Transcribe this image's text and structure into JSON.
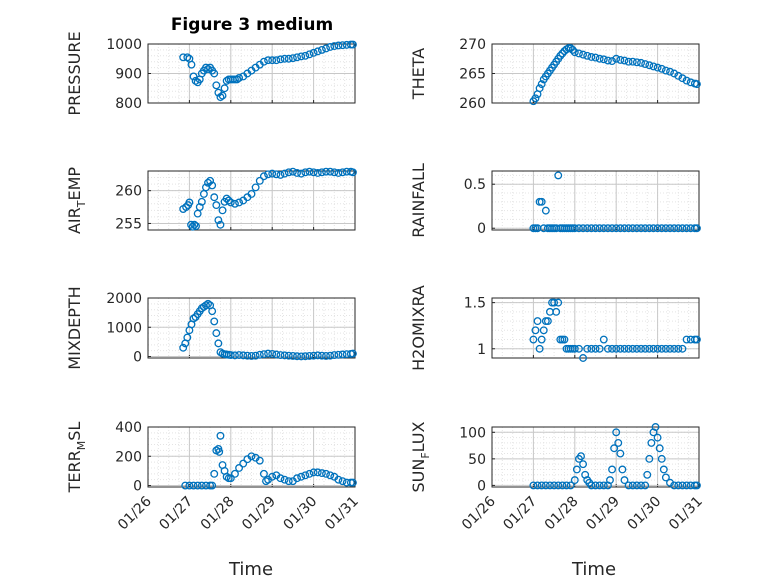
{
  "figure": {
    "title": "Figure 3 medium"
  },
  "colors": {
    "marker": "#0072BD",
    "axis": "#262626",
    "grid": "#c8c8c8",
    "grid_minor": "#e4e4e4"
  },
  "chart_data": [
    {
      "type": "scatter",
      "ylabel": "PRESSURE",
      "ylim": [
        800,
        1000
      ],
      "yticks": [
        {
          "v": 800,
          "label": "800"
        },
        {
          "v": 900,
          "label": "900"
        },
        {
          "v": 1000,
          "label": "1000"
        }
      ],
      "x": [
        0.85,
        0.95,
        1.0,
        1.05,
        1.1,
        1.15,
        1.2,
        1.25,
        1.3,
        1.35,
        1.4,
        1.45,
        1.5,
        1.55,
        1.6,
        1.65,
        1.7,
        1.75,
        1.8,
        1.85,
        1.9,
        1.95,
        2.0,
        2.05,
        2.1,
        2.15,
        2.2,
        2.3,
        2.4,
        2.5,
        2.6,
        2.7,
        2.8,
        2.9,
        3.0,
        3.1,
        3.2,
        3.3,
        3.4,
        3.5,
        3.6,
        3.7,
        3.8,
        3.9,
        4.0,
        4.1,
        4.2,
        4.3,
        4.4,
        4.5,
        4.6,
        4.7,
        4.8,
        4.9,
        4.95
      ],
      "y": [
        955,
        955,
        950,
        930,
        890,
        875,
        870,
        880,
        900,
        910,
        920,
        915,
        920,
        910,
        900,
        860,
        835,
        820,
        825,
        850,
        875,
        880,
        880,
        880,
        880,
        880,
        885,
        890,
        900,
        910,
        920,
        930,
        940,
        945,
        945,
        945,
        948,
        950,
        950,
        952,
        955,
        958,
        960,
        965,
        970,
        975,
        980,
        985,
        990,
        993,
        995,
        996,
        997,
        998,
        998
      ]
    },
    {
      "type": "scatter",
      "ylabel": "THETA",
      "ylim": [
        260,
        270
      ],
      "yticks": [
        {
          "v": 260,
          "label": "260"
        },
        {
          "v": 265,
          "label": "265"
        },
        {
          "v": 270,
          "label": "270"
        }
      ],
      "x": [
        1.0,
        1.05,
        1.1,
        1.15,
        1.2,
        1.25,
        1.3,
        1.35,
        1.4,
        1.45,
        1.5,
        1.55,
        1.6,
        1.65,
        1.7,
        1.75,
        1.8,
        1.85,
        1.9,
        1.95,
        2.0,
        2.1,
        2.2,
        2.3,
        2.4,
        2.5,
        2.6,
        2.7,
        2.8,
        2.9,
        3.0,
        3.1,
        3.2,
        3.3,
        3.4,
        3.5,
        3.6,
        3.7,
        3.8,
        3.9,
        4.0,
        4.1,
        4.2,
        4.3,
        4.4,
        4.5,
        4.6,
        4.7,
        4.8,
        4.9,
        4.95
      ],
      "y": [
        260.3,
        260.8,
        261.5,
        262.5,
        263.2,
        264.0,
        264.5,
        265.0,
        265.5,
        266.0,
        266.5,
        267.0,
        267.5,
        268.0,
        268.4,
        268.8,
        269.1,
        269.3,
        269.3,
        269.0,
        268.6,
        268.4,
        268.2,
        268.0,
        267.8,
        267.7,
        267.5,
        267.4,
        267.2,
        267.1,
        267.5,
        267.3,
        267.2,
        267.0,
        267.0,
        266.9,
        266.8,
        266.6,
        266.4,
        266.2,
        266.0,
        265.8,
        265.5,
        265.3,
        265.0,
        264.6,
        264.2,
        263.8,
        263.5,
        263.3,
        263.2
      ]
    },
    {
      "type": "scatter",
      "ylabel": "AIR_TEMP",
      "ylim": [
        254,
        263
      ],
      "yticks": [
        {
          "v": 255,
          "label": "255"
        },
        {
          "v": 260,
          "label": "260"
        }
      ],
      "x": [
        0.85,
        0.92,
        0.97,
        1.0,
        1.04,
        1.08,
        1.12,
        1.16,
        1.2,
        1.25,
        1.3,
        1.35,
        1.4,
        1.45,
        1.5,
        1.55,
        1.6,
        1.65,
        1.7,
        1.75,
        1.8,
        1.85,
        1.9,
        1.95,
        2.0,
        2.1,
        2.2,
        2.3,
        2.4,
        2.5,
        2.6,
        2.7,
        2.8,
        2.9,
        3.0,
        3.1,
        3.2,
        3.3,
        3.4,
        3.5,
        3.6,
        3.7,
        3.8,
        3.9,
        4.0,
        4.1,
        4.2,
        4.3,
        4.4,
        4.5,
        4.6,
        4.7,
        4.8,
        4.9,
        4.95
      ],
      "y": [
        257.2,
        257.5,
        257.8,
        258.2,
        254.8,
        254.5,
        254.8,
        254.6,
        256.5,
        257.5,
        258.3,
        259.5,
        260.5,
        261.2,
        261.5,
        260.8,
        259.0,
        257.8,
        255.5,
        254.8,
        257.0,
        258.3,
        258.8,
        258.5,
        258.2,
        258.0,
        258.2,
        258.5,
        259.0,
        259.5,
        260.5,
        261.5,
        262.2,
        262.5,
        262.6,
        262.5,
        262.4,
        262.6,
        262.8,
        262.9,
        262.7,
        262.6,
        262.8,
        262.9,
        262.8,
        262.7,
        262.8,
        262.9,
        262.9,
        262.8,
        262.7,
        262.8,
        262.9,
        262.9,
        262.8
      ]
    },
    {
      "type": "scatter",
      "ylabel": "RAINFALL",
      "ylim": [
        -0.02,
        0.65
      ],
      "yticks": [
        {
          "v": 0,
          "label": "0"
        },
        {
          "v": 0.5,
          "label": "0.5"
        }
      ],
      "x": [
        1.0,
        1.05,
        1.1,
        1.15,
        1.2,
        1.25,
        1.3,
        1.35,
        1.4,
        1.45,
        1.5,
        1.55,
        1.6,
        1.65,
        1.7,
        1.75,
        1.8,
        1.85,
        1.9,
        1.95,
        2.0,
        2.1,
        2.2,
        2.3,
        2.4,
        2.5,
        2.6,
        2.7,
        2.8,
        2.9,
        3.0,
        3.1,
        3.2,
        3.3,
        3.4,
        3.5,
        3.6,
        3.7,
        3.8,
        3.9,
        4.0,
        4.1,
        4.2,
        4.3,
        4.4,
        4.5,
        4.6,
        4.7,
        4.8,
        4.9,
        4.95
      ],
      "y": [
        0,
        0,
        0,
        0.3,
        0.3,
        0,
        0.2,
        0,
        0,
        0,
        0,
        0,
        0.6,
        0,
        0,
        0,
        0,
        0,
        0,
        0,
        0,
        0,
        0,
        0,
        0,
        0,
        0,
        0,
        0,
        0,
        0,
        0,
        0,
        0,
        0,
        0,
        0,
        0,
        0,
        0,
        0,
        0,
        0,
        0,
        0,
        0,
        0,
        0,
        0,
        0,
        0
      ]
    },
    {
      "type": "scatter",
      "ylabel": "MIXDEPTH",
      "ylim": [
        -50,
        2000
      ],
      "yticks": [
        {
          "v": 0,
          "label": "0"
        },
        {
          "v": 1000,
          "label": "1000"
        },
        {
          "v": 2000,
          "label": "2000"
        }
      ],
      "x": [
        0.85,
        0.9,
        0.95,
        1.0,
        1.05,
        1.1,
        1.15,
        1.2,
        1.25,
        1.3,
        1.35,
        1.4,
        1.45,
        1.5,
        1.55,
        1.6,
        1.65,
        1.7,
        1.75,
        1.8,
        1.85,
        1.9,
        1.95,
        2.0,
        2.1,
        2.2,
        2.3,
        2.4,
        2.5,
        2.6,
        2.7,
        2.8,
        2.9,
        3.0,
        3.1,
        3.2,
        3.3,
        3.4,
        3.5,
        3.6,
        3.7,
        3.8,
        3.9,
        4.0,
        4.1,
        4.2,
        4.3,
        4.4,
        4.5,
        4.6,
        4.7,
        4.8,
        4.9,
        4.95
      ],
      "y": [
        300,
        450,
        650,
        900,
        1100,
        1300,
        1350,
        1450,
        1550,
        1650,
        1700,
        1750,
        1800,
        1750,
        1550,
        1200,
        800,
        450,
        150,
        100,
        80,
        70,
        60,
        50,
        40,
        50,
        40,
        30,
        20,
        30,
        60,
        80,
        100,
        90,
        70,
        50,
        40,
        30,
        20,
        10,
        5,
        10,
        20,
        30,
        40,
        30,
        20,
        30,
        50,
        60,
        70,
        80,
        90,
        100
      ]
    },
    {
      "type": "scatter",
      "ylabel": "H2OMIXRA",
      "ylim": [
        0.9,
        1.55
      ],
      "yticks": [
        {
          "v": 1,
          "label": "1"
        },
        {
          "v": 1.5,
          "label": "1.5"
        }
      ],
      "x": [
        1.0,
        1.05,
        1.1,
        1.15,
        1.2,
        1.25,
        1.3,
        1.35,
        1.4,
        1.45,
        1.5,
        1.55,
        1.6,
        1.65,
        1.7,
        1.75,
        1.8,
        1.85,
        1.9,
        1.95,
        2.0,
        2.1,
        2.2,
        2.3,
        2.4,
        2.5,
        2.6,
        2.7,
        2.8,
        2.9,
        3.0,
        3.1,
        3.2,
        3.3,
        3.4,
        3.5,
        3.6,
        3.7,
        3.8,
        3.9,
        4.0,
        4.1,
        4.2,
        4.3,
        4.4,
        4.5,
        4.6,
        4.7,
        4.8,
        4.9,
        4.95
      ],
      "y": [
        1.1,
        1.2,
        1.3,
        1.0,
        1.1,
        1.2,
        1.3,
        1.3,
        1.4,
        1.5,
        1.5,
        1.4,
        1.5,
        1.1,
        1.1,
        1.1,
        1.0,
        1.0,
        1.0,
        1.0,
        1.0,
        1.0,
        0.9,
        1.0,
        1.0,
        1.0,
        1.0,
        1.1,
        1.0,
        1.0,
        1.0,
        1.0,
        1.0,
        1.0,
        1.0,
        1.0,
        1.0,
        1.0,
        1.0,
        1.0,
        1.0,
        1.0,
        1.0,
        1.0,
        1.0,
        1.0,
        1.0,
        1.1,
        1.1,
        1.1,
        1.1
      ]
    },
    {
      "type": "scatter",
      "ylabel": "TERR_MSL",
      "ylim": [
        -10,
        400
      ],
      "yticks": [
        {
          "v": 0,
          "label": "0"
        },
        {
          "v": 200,
          "label": "200"
        },
        {
          "v": 400,
          "label": "400"
        }
      ],
      "x": [
        0.9,
        1.0,
        1.1,
        1.2,
        1.3,
        1.4,
        1.5,
        1.55,
        1.6,
        1.65,
        1.7,
        1.72,
        1.75,
        1.8,
        1.85,
        1.9,
        1.95,
        2.0,
        2.1,
        2.2,
        2.3,
        2.4,
        2.5,
        2.6,
        2.7,
        2.8,
        2.85,
        2.9,
        3.0,
        3.1,
        3.2,
        3.3,
        3.4,
        3.5,
        3.6,
        3.7,
        3.8,
        3.9,
        4.0,
        4.1,
        4.2,
        4.3,
        4.4,
        4.5,
        4.6,
        4.7,
        4.8,
        4.9,
        4.95
      ],
      "y": [
        0,
        0,
        0,
        0,
        0,
        0,
        0,
        0,
        80,
        240,
        250,
        230,
        340,
        140,
        100,
        60,
        50,
        50,
        80,
        120,
        150,
        180,
        200,
        190,
        170,
        80,
        30,
        40,
        60,
        70,
        50,
        40,
        30,
        30,
        50,
        60,
        70,
        80,
        90,
        90,
        85,
        80,
        70,
        60,
        40,
        30,
        20,
        20,
        20
      ]
    },
    {
      "type": "scatter",
      "ylabel": "SUN_FLUX",
      "ylim": [
        -3,
        110
      ],
      "yticks": [
        {
          "v": 0,
          "label": "0"
        },
        {
          "v": 50,
          "label": "50"
        },
        {
          "v": 100,
          "label": "100"
        }
      ],
      "x": [
        1.0,
        1.1,
        1.2,
        1.3,
        1.4,
        1.5,
        1.6,
        1.7,
        1.8,
        1.9,
        2.0,
        2.05,
        2.1,
        2.15,
        2.2,
        2.25,
        2.3,
        2.35,
        2.4,
        2.5,
        2.6,
        2.7,
        2.8,
        2.85,
        2.9,
        2.95,
        3.0,
        3.05,
        3.1,
        3.15,
        3.2,
        3.3,
        3.4,
        3.5,
        3.6,
        3.7,
        3.75,
        3.8,
        3.85,
        3.9,
        3.95,
        4.0,
        4.05,
        4.1,
        4.15,
        4.2,
        4.3,
        4.4,
        4.5,
        4.6,
        4.7,
        4.8,
        4.9,
        4.95
      ],
      "y": [
        0,
        0,
        0,
        0,
        0,
        0,
        0,
        0,
        0,
        0,
        10,
        30,
        50,
        55,
        40,
        20,
        10,
        5,
        0,
        0,
        0,
        0,
        0,
        10,
        30,
        70,
        100,
        80,
        60,
        30,
        10,
        0,
        0,
        0,
        0,
        0,
        20,
        50,
        80,
        100,
        110,
        90,
        70,
        50,
        30,
        15,
        5,
        0,
        0,
        0,
        0,
        0,
        0,
        0
      ]
    }
  ],
  "xaxis": {
    "label": "Time",
    "xlim": [
      0,
      5
    ],
    "ticks": [
      {
        "v": 0,
        "label": "01/26"
      },
      {
        "v": 1,
        "label": "01/27"
      },
      {
        "v": 2,
        "label": "01/28"
      },
      {
        "v": 3,
        "label": "01/29"
      },
      {
        "v": 4,
        "label": "01/30"
      },
      {
        "v": 5,
        "label": "01/31"
      }
    ]
  }
}
